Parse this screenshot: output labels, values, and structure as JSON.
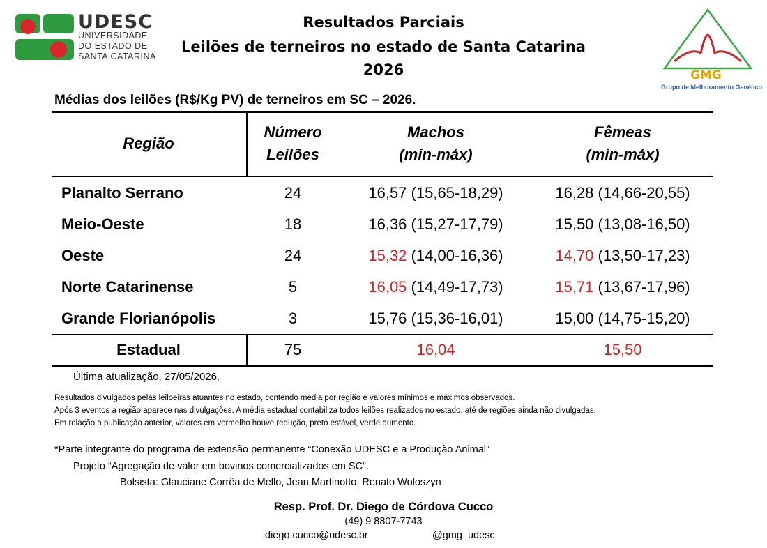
{
  "header": {
    "logo": {
      "name": "UDESC",
      "lines": [
        "UNIVERSIDADE",
        "DO ESTADO DE",
        "SANTA CATARINA"
      ]
    },
    "title_lines": [
      "Resultados Parciais",
      "Leilões de terneiros no estado de Santa Catarina",
      "2026"
    ],
    "gmg_logo": {
      "name": "GMG",
      "caption": "Grupo de Melhoramento Genético"
    }
  },
  "subtitle": "Médias dos leilões (R$/Kg PV) de terneiros em SC – 2026.",
  "table": {
    "columns": [
      {
        "lines": [
          "Região"
        ]
      },
      {
        "lines": [
          "Número",
          "Leilões"
        ]
      },
      {
        "lines": [
          "Machos",
          "(min-máx)"
        ]
      },
      {
        "lines": [
          "Fêmeas",
          "(min-máx)"
        ]
      }
    ],
    "rows": [
      {
        "region": "Planalto Serrano",
        "count": 24,
        "machos": {
          "value": "16,57",
          "range": "(15,65-18,29)",
          "color": "#000000"
        },
        "femeas": {
          "value": "16,28",
          "range": "(14,66-20,55)",
          "color": "#000000"
        }
      },
      {
        "region": "Meio-Oeste",
        "count": 18,
        "machos": {
          "value": "16,36",
          "range": "(15,27-17,79)",
          "color": "#000000"
        },
        "femeas": {
          "value": "15,50",
          "range": "(13,08-16,50)",
          "color": "#000000"
        }
      },
      {
        "region": "Oeste",
        "count": 24,
        "machos": {
          "value": "15,32",
          "range": "(14,00-16,36)",
          "color": "#c62828"
        },
        "femeas": {
          "value": "14,70",
          "range": "(13,50-17,23)",
          "color": "#c62828"
        }
      },
      {
        "region": "Norte Catarinense",
        "count": 5,
        "machos": {
          "value": "16,05",
          "range": "(14,49-17,73)",
          "color": "#c62828"
        },
        "femeas": {
          "value": "15,71",
          "range": "(13,67-17,96)",
          "color": "#c62828"
        }
      },
      {
        "region": "Grande Florianópolis",
        "count": 3,
        "machos": {
          "value": "15,76",
          "range": "(15,36-16,01)",
          "color": "#000000"
        },
        "femeas": {
          "value": "15,00",
          "range": "(14,75-15,20)",
          "color": "#000000"
        }
      }
    ],
    "total": {
      "region": "Estadual",
      "count": 75,
      "machos": {
        "value": "16,04",
        "color": "#c62828"
      },
      "femeas": {
        "value": "15,50",
        "color": "#c62828"
      }
    }
  },
  "updated": "Última atualização, 27/05/2026.",
  "notes": [
    "Resultados divulgados pelas leiloeiras atuantes no estado, contendo média por região e valores mínimos e máximos observados.",
    "Após 3 eventos a região aparece nas divulgações. A média estadual contabiliza todos leilões realizados no estado, até de regiões ainda não divulgadas.",
    "Em relação a publicação anterior, valores em vermelho houve redução, preto estável, verde aumento."
  ],
  "credits": [
    "*Parte integrante do programa de extensão permanente “Conexão UDESC e a Produção Animal”",
    "Projeto “Agregação de valor em bovinos comercializados em SC”.",
    "Bolsista: Glauciane Corrêa de Mello, Jean Martinotto, Renato Woloszyn"
  ],
  "contact": {
    "name": "Resp. Prof. Dr. Diego de Córdova Cucco",
    "phone": "(49) 9 8807-7743",
    "email": "diego.cucco@udesc.br",
    "instagram": "@gmg_udesc"
  }
}
